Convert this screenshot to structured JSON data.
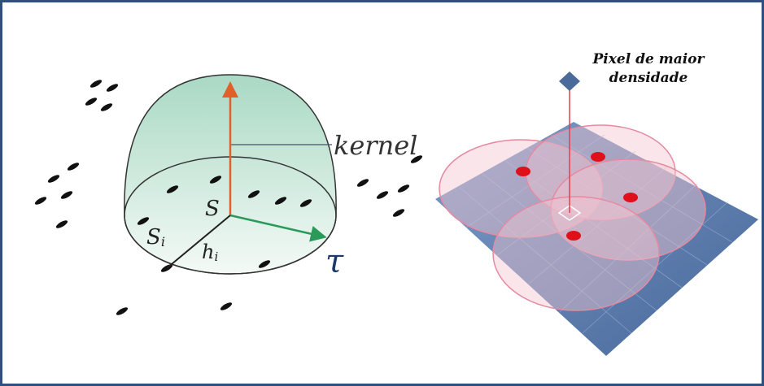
{
  "left": {
    "kernel_label": "kernel",
    "center_label": "S",
    "point_label": {
      "base": "S",
      "sub": "i"
    },
    "distance_label": {
      "base": "h",
      "sub": "i"
    },
    "axis_label": "τ"
  },
  "right": {
    "caption_lines": [
      "Pixel de maior",
      "densidade"
    ]
  }
}
